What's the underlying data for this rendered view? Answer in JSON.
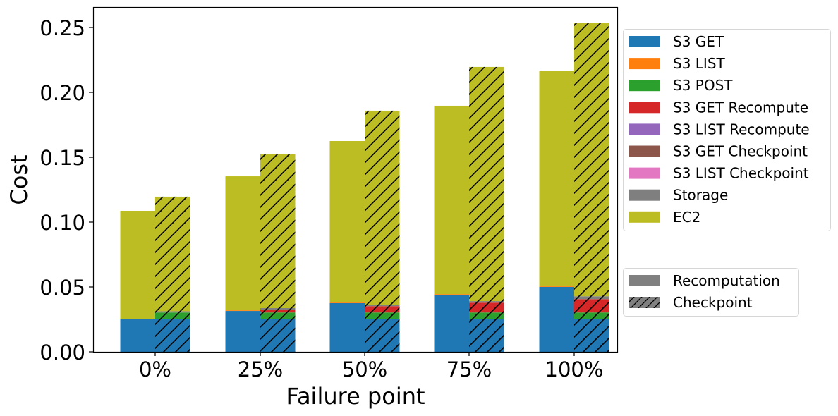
{
  "chart_data": {
    "type": "bar",
    "subtype": "grouped-stacked",
    "title": "",
    "xlabel": "Failure point",
    "ylabel": "Cost",
    "ylim": [
      0,
      0.265
    ],
    "yticks": [
      0.0,
      0.05,
      0.1,
      0.15,
      0.2,
      0.25
    ],
    "ytick_labels": [
      "0.00",
      "0.05",
      "0.10",
      "0.15",
      "0.20",
      "0.25"
    ],
    "categories": [
      "0%",
      "25%",
      "50%",
      "75%",
      "100%"
    ],
    "grid": false,
    "legend_position": "right-outside",
    "components": [
      {
        "name": "S3 GET",
        "color": "#1f77b4"
      },
      {
        "name": "S3 LIST",
        "color": "#ff7f0e"
      },
      {
        "name": "S3 POST",
        "color": "#2ca02c"
      },
      {
        "name": "S3 GET Recompute",
        "color": "#d62728"
      },
      {
        "name": "S3 LIST Recompute",
        "color": "#9467bd"
      },
      {
        "name": "S3 GET Checkpoint",
        "color": "#8c564b"
      },
      {
        "name": "S3 LIST Checkpoint",
        "color": "#e377c2"
      },
      {
        "name": "Storage",
        "color": "#7f7f7f"
      },
      {
        "name": "EC2",
        "color": "#bcbd22"
      }
    ],
    "strategies": [
      {
        "name": "Recomputation",
        "hatch": false
      },
      {
        "name": "Checkpoint",
        "hatch": true
      }
    ],
    "series": [
      {
        "name": "Recomputation",
        "stacks": [
          {
            "S3 GET": 0.025,
            "S3 LIST": 0.0005,
            "S3 POST": 0.0,
            "S3 GET Recompute": 0.0,
            "S3 LIST Recompute": 0.0,
            "S3 GET Checkpoint": 0.0,
            "S3 LIST Checkpoint": 0.0,
            "Storage": 0.0,
            "EC2": 0.0832
          },
          {
            "S3 GET": 0.0315,
            "S3 LIST": 0.0005,
            "S3 POST": 0.0,
            "S3 GET Recompute": 0.0,
            "S3 LIST Recompute": 0.0,
            "S3 GET Checkpoint": 0.0,
            "S3 LIST Checkpoint": 0.0,
            "Storage": 0.0,
            "EC2": 0.1033
          },
          {
            "S3 GET": 0.0375,
            "S3 LIST": 0.0005,
            "S3 POST": 0.0,
            "S3 GET Recompute": 0.0,
            "S3 LIST Recompute": 0.0,
            "S3 GET Checkpoint": 0.0,
            "S3 LIST Checkpoint": 0.0,
            "Storage": 0.0,
            "EC2": 0.1245
          },
          {
            "S3 GET": 0.044,
            "S3 LIST": 0.0005,
            "S3 POST": 0.0,
            "S3 GET Recompute": 0.0,
            "S3 LIST Recompute": 0.0,
            "S3 GET Checkpoint": 0.0,
            "S3 LIST Checkpoint": 0.0,
            "Storage": 0.0,
            "EC2": 0.1452
          },
          {
            "S3 GET": 0.05,
            "S3 LIST": 0.0005,
            "S3 POST": 0.0,
            "S3 GET Recompute": 0.0,
            "S3 LIST Recompute": 0.0,
            "S3 GET Checkpoint": 0.0,
            "S3 LIST Checkpoint": 0.0,
            "Storage": 0.0,
            "EC2": 0.1663
          }
        ],
        "totals": [
          0.1087,
          0.1353,
          0.1625,
          0.1897,
          0.2168
        ]
      },
      {
        "name": "Checkpoint",
        "stacks": [
          {
            "S3 GET": 0.025,
            "S3 LIST": 0.0005,
            "S3 POST": 0.0048,
            "S3 GET Recompute": 0.0,
            "S3 LIST Recompute": 0.0,
            "S3 GET Checkpoint": 0.0,
            "S3 LIST Checkpoint": 0.0,
            "Storage": 0.001,
            "EC2": 0.0883
          },
          {
            "S3 GET": 0.025,
            "S3 LIST": 0.0005,
            "S3 POST": 0.0048,
            "S3 GET Recompute": 0.0022,
            "S3 LIST Recompute": 0.0,
            "S3 GET Checkpoint": 0.0,
            "S3 LIST Checkpoint": 0.0,
            "Storage": 0.0012,
            "EC2": 0.119
          },
          {
            "S3 GET": 0.025,
            "S3 LIST": 0.0005,
            "S3 POST": 0.0048,
            "S3 GET Recompute": 0.0049,
            "S3 LIST Recompute": 0.0,
            "S3 GET Checkpoint": 0.0,
            "S3 LIST Checkpoint": 0.0,
            "Storage": 0.0012,
            "EC2": 0.1495
          },
          {
            "S3 GET": 0.025,
            "S3 LIST": 0.0005,
            "S3 POST": 0.0048,
            "S3 GET Recompute": 0.0076,
            "S3 LIST Recompute": 0.0,
            "S3 GET Checkpoint": 0.0,
            "S3 LIST Checkpoint": 0.0,
            "Storage": 0.0012,
            "EC2": 0.1805
          },
          {
            "S3 GET": 0.025,
            "S3 LIST": 0.0005,
            "S3 POST": 0.0048,
            "S3 GET Recompute": 0.0103,
            "S3 LIST Recompute": 0.0,
            "S3 GET Checkpoint": 0.0,
            "S3 LIST Checkpoint": 0.0,
            "Storage": 0.0022,
            "EC2": 0.2105
          }
        ],
        "totals": [
          0.1196,
          0.1527,
          0.1859,
          0.2196,
          0.2533
        ]
      }
    ]
  },
  "legend_components": {
    "title": "",
    "items": [
      "S3 GET",
      "S3 LIST",
      "S3 POST",
      "S3 GET Recompute",
      "S3 LIST Recompute",
      "S3 GET Checkpoint",
      "S3 LIST Checkpoint",
      "Storage",
      "EC2"
    ]
  },
  "legend_strategies": {
    "items": [
      "Recomputation",
      "Checkpoint"
    ],
    "swatch_color": "#808080"
  }
}
